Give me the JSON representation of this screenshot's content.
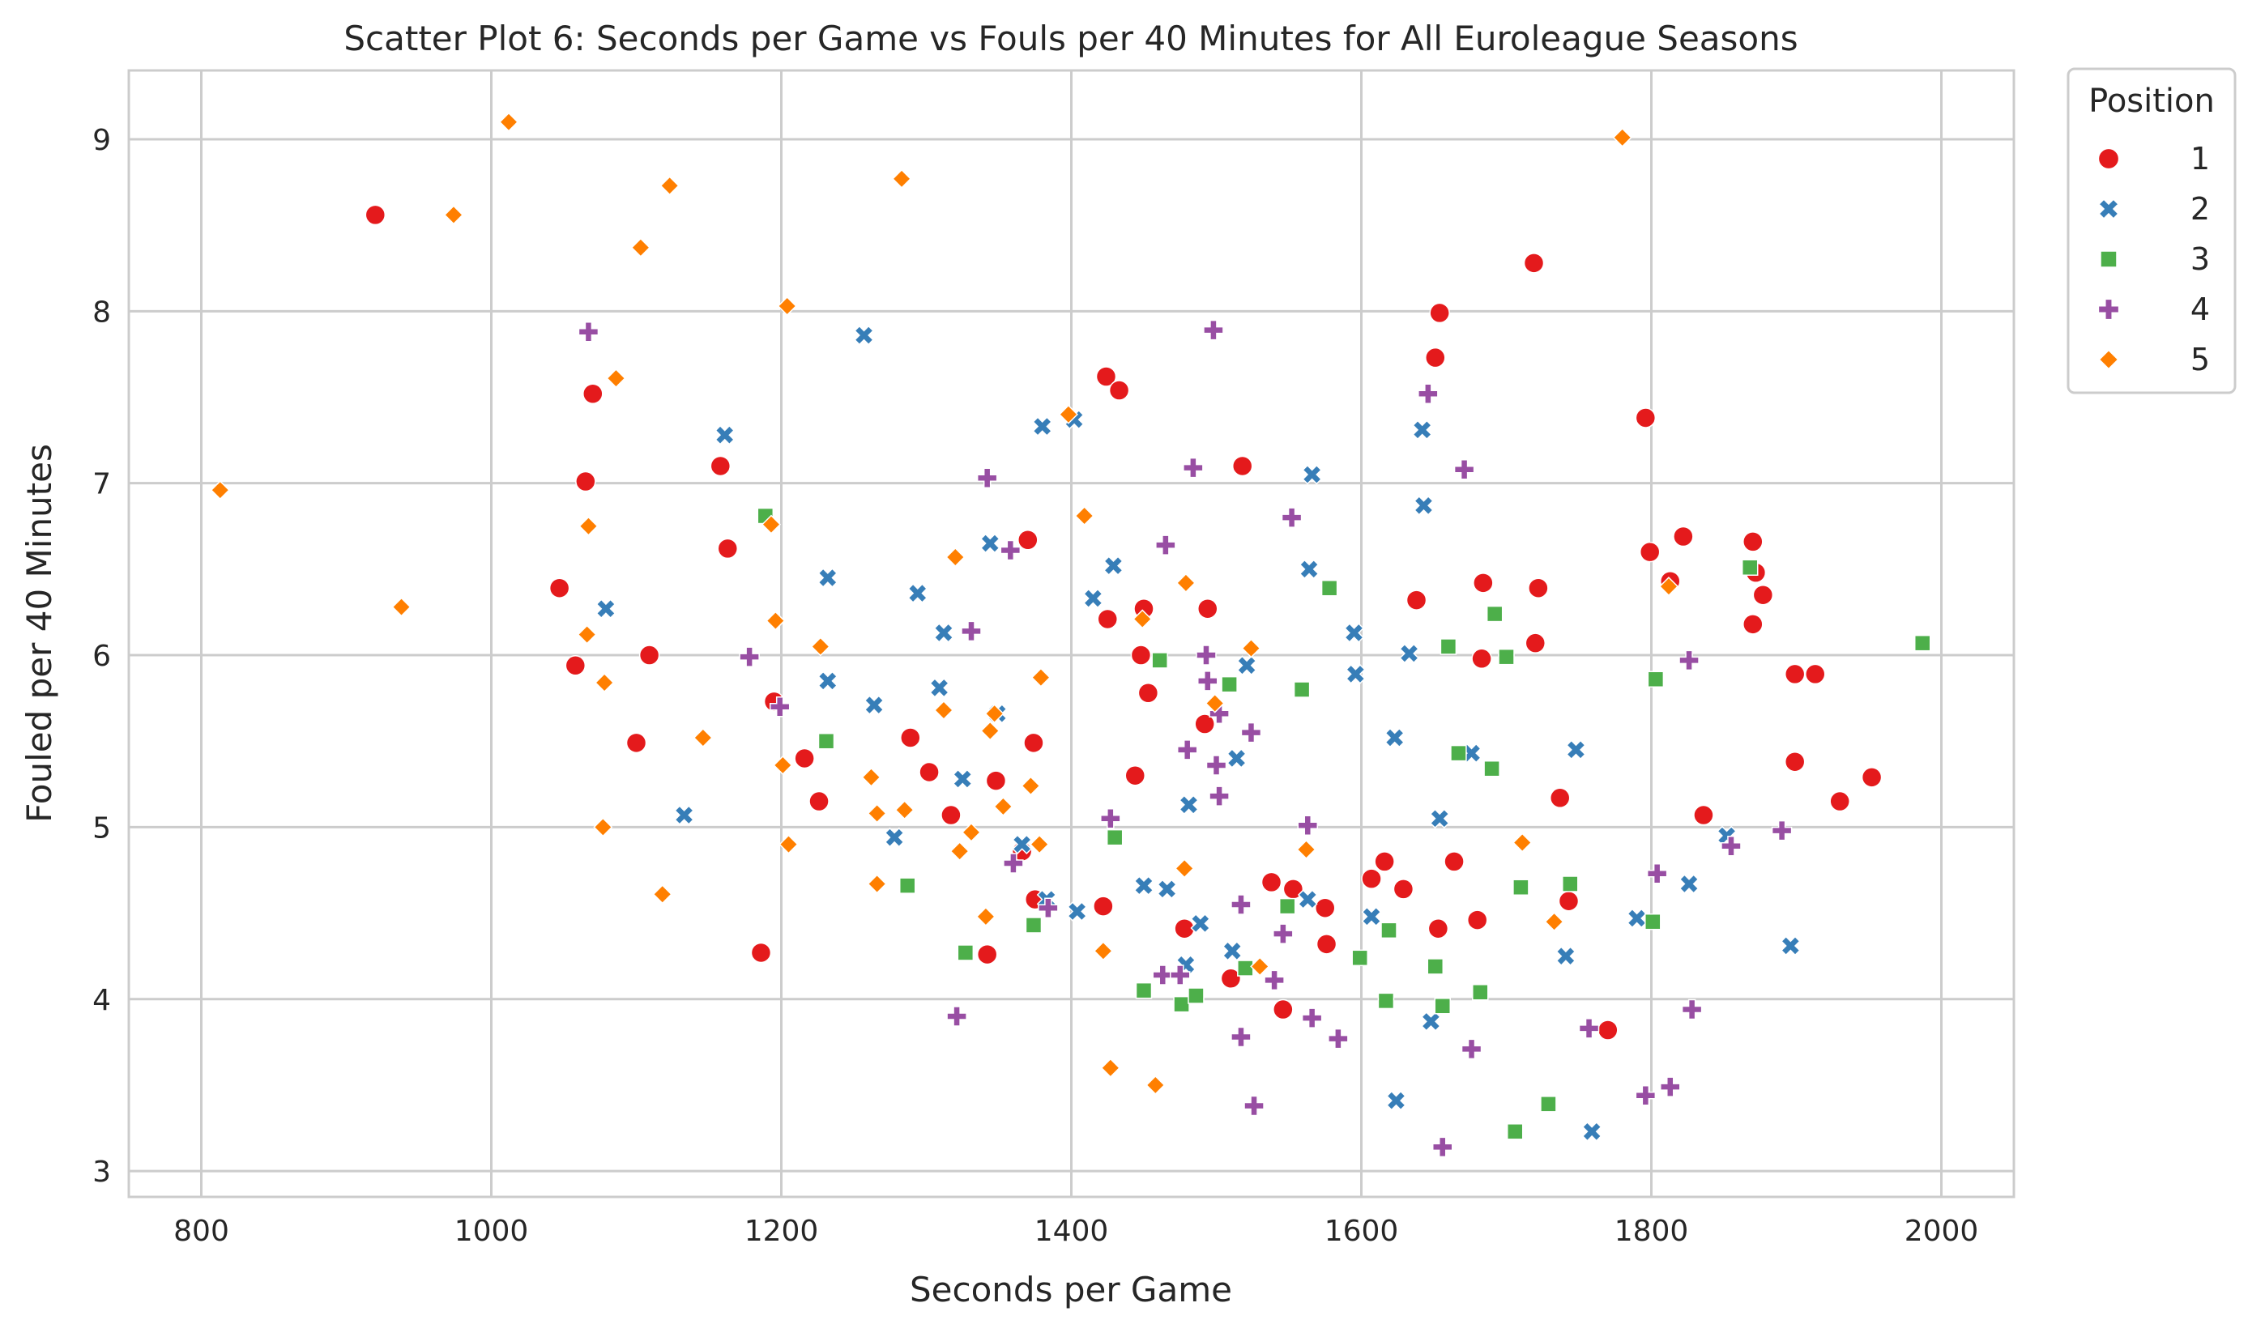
{
  "chart_data": {
    "type": "scatter",
    "title": "Scatter Plot 6: Seconds per Game vs Fouls per 40 Minutes for All Euroleague Seasons",
    "xlabel": "Seconds per Game",
    "ylabel": "Fouled per 40 Minutes",
    "xlim": [
      750,
      2050
    ],
    "ylim": [
      2.85,
      9.4
    ],
    "xticks": [
      800,
      1000,
      1200,
      1400,
      1600,
      1800,
      2000
    ],
    "yticks": [
      3,
      4,
      5,
      6,
      7,
      8,
      9
    ],
    "grid": true,
    "legend": {
      "title": "Position",
      "placement": "outside right, top"
    },
    "series": [
      {
        "name": "1",
        "marker": "circle",
        "color": "#e41a1c",
        "points": [
          [
            920,
            8.56
          ],
          [
            1047,
            6.39
          ],
          [
            1058,
            5.94
          ],
          [
            1065,
            7.01
          ],
          [
            1070,
            7.52
          ],
          [
            1100,
            5.49
          ],
          [
            1109,
            6.0
          ],
          [
            1158,
            7.1
          ],
          [
            1163,
            6.62
          ],
          [
            1186,
            4.27
          ],
          [
            1195,
            5.73
          ],
          [
            1216,
            5.4
          ],
          [
            1226,
            5.15
          ],
          [
            1289,
            5.52
          ],
          [
            1302,
            5.32
          ],
          [
            1317,
            5.07
          ],
          [
            1342,
            4.26
          ],
          [
            1348,
            5.27
          ],
          [
            1366,
            4.86
          ],
          [
            1370,
            6.67
          ],
          [
            1374,
            5.49
          ],
          [
            1375,
            4.58
          ],
          [
            1422,
            4.54
          ],
          [
            1424,
            7.62
          ],
          [
            1425,
            6.21
          ],
          [
            1433,
            7.54
          ],
          [
            1444,
            5.3
          ],
          [
            1448,
            6.0
          ],
          [
            1450,
            6.27
          ],
          [
            1453,
            5.78
          ],
          [
            1478,
            4.41
          ],
          [
            1492,
            5.6
          ],
          [
            1494,
            6.27
          ],
          [
            1510,
            4.12
          ],
          [
            1518,
            7.1
          ],
          [
            1538,
            4.68
          ],
          [
            1546,
            3.94
          ],
          [
            1553,
            4.64
          ],
          [
            1575,
            4.53
          ],
          [
            1576,
            4.32
          ],
          [
            1607,
            4.7
          ],
          [
            1616,
            4.8
          ],
          [
            1629,
            4.64
          ],
          [
            1638,
            6.32
          ],
          [
            1651,
            7.73
          ],
          [
            1653,
            4.41
          ],
          [
            1654,
            7.99
          ],
          [
            1664,
            4.8
          ],
          [
            1680,
            4.46
          ],
          [
            1683,
            5.98
          ],
          [
            1684,
            6.42
          ],
          [
            1719,
            8.28
          ],
          [
            1720,
            6.07
          ],
          [
            1722,
            6.39
          ],
          [
            1737,
            5.17
          ],
          [
            1743,
            4.57
          ],
          [
            1770,
            3.82
          ],
          [
            1796,
            7.38
          ],
          [
            1799,
            6.6
          ],
          [
            1813,
            6.43
          ],
          [
            1822,
            6.69
          ],
          [
            1836,
            5.07
          ],
          [
            1870,
            6.66
          ],
          [
            1870,
            6.18
          ],
          [
            1872,
            6.48
          ],
          [
            1877,
            6.35
          ],
          [
            1899,
            5.89
          ],
          [
            1913,
            5.89
          ],
          [
            1899,
            5.38
          ],
          [
            1930,
            5.15
          ],
          [
            1952,
            5.29
          ]
        ]
      },
      {
        "name": "2",
        "marker": "x",
        "color": "#377eb8",
        "points": [
          [
            1079,
            6.27
          ],
          [
            1133,
            5.07
          ],
          [
            1161,
            7.28
          ],
          [
            1257,
            7.86
          ],
          [
            1232,
            6.45
          ],
          [
            1232,
            5.85
          ],
          [
            1264,
            5.71
          ],
          [
            1278,
            4.94
          ],
          [
            1294,
            6.36
          ],
          [
            1309,
            5.81
          ],
          [
            1312,
            6.13
          ],
          [
            1325,
            5.28
          ],
          [
            1344,
            6.65
          ],
          [
            1349,
            5.66
          ],
          [
            1366,
            4.9
          ],
          [
            1380,
            7.33
          ],
          [
            1383,
            4.58
          ],
          [
            1402,
            7.37
          ],
          [
            1404,
            4.51
          ],
          [
            1415,
            6.33
          ],
          [
            1429,
            6.52
          ],
          [
            1450,
            4.66
          ],
          [
            1466,
            4.64
          ],
          [
            1479,
            4.2
          ],
          [
            1481,
            5.13
          ],
          [
            1489,
            4.44
          ],
          [
            1511,
            4.28
          ],
          [
            1514,
            5.4
          ],
          [
            1521,
            5.94
          ],
          [
            1563,
            4.58
          ],
          [
            1564,
            6.5
          ],
          [
            1566,
            7.05
          ],
          [
            1595,
            6.13
          ],
          [
            1596,
            5.89
          ],
          [
            1607,
            4.48
          ],
          [
            1623,
            5.52
          ],
          [
            1624,
            3.41
          ],
          [
            1633,
            6.01
          ],
          [
            1642,
            7.31
          ],
          [
            1643,
            6.87
          ],
          [
            1648,
            3.87
          ],
          [
            1654,
            5.05
          ],
          [
            1676,
            5.43
          ],
          [
            1741,
            4.25
          ],
          [
            1748,
            5.45
          ],
          [
            1759,
            3.23
          ],
          [
            1790,
            4.47
          ],
          [
            1826,
            4.67
          ],
          [
            1852,
            4.95
          ],
          [
            1896,
            4.31
          ]
        ]
      },
      {
        "name": "3",
        "marker": "square",
        "color": "#4daf4a",
        "points": [
          [
            1189,
            6.81
          ],
          [
            1231,
            5.5
          ],
          [
            1287,
            4.66
          ],
          [
            1327,
            4.27
          ],
          [
            1374,
            4.43
          ],
          [
            1430,
            4.94
          ],
          [
            1450,
            4.05
          ],
          [
            1461,
            5.97
          ],
          [
            1476,
            3.97
          ],
          [
            1486,
            4.02
          ],
          [
            1509,
            5.83
          ],
          [
            1520,
            4.18
          ],
          [
            1549,
            4.54
          ],
          [
            1559,
            5.8
          ],
          [
            1578,
            6.39
          ],
          [
            1599,
            4.24
          ],
          [
            1617,
            3.99
          ],
          [
            1619,
            4.4
          ],
          [
            1651,
            4.19
          ],
          [
            1656,
            3.96
          ],
          [
            1660,
            6.05
          ],
          [
            1667,
            5.43
          ],
          [
            1682,
            4.04
          ],
          [
            1690,
            5.34
          ],
          [
            1692,
            6.24
          ],
          [
            1700,
            5.99
          ],
          [
            1706,
            3.23
          ],
          [
            1710,
            4.65
          ],
          [
            1729,
            3.39
          ],
          [
            1744,
            4.67
          ],
          [
            1801,
            4.45
          ],
          [
            1803,
            5.86
          ],
          [
            1868,
            6.51
          ],
          [
            1987,
            6.07
          ]
        ]
      },
      {
        "name": "4",
        "marker": "plus",
        "color": "#984ea3",
        "points": [
          [
            1067,
            7.88
          ],
          [
            1178,
            5.99
          ],
          [
            1199,
            5.7
          ],
          [
            1321,
            3.9
          ],
          [
            1331,
            6.14
          ],
          [
            1342,
            7.03
          ],
          [
            1358,
            6.61
          ],
          [
            1360,
            4.79
          ],
          [
            1384,
            4.53
          ],
          [
            1427,
            5.05
          ],
          [
            1463,
            4.14
          ],
          [
            1465,
            6.64
          ],
          [
            1475,
            4.14
          ],
          [
            1480,
            5.45
          ],
          [
            1484,
            7.09
          ],
          [
            1493,
            6.0
          ],
          [
            1494,
            5.85
          ],
          [
            1498,
            7.89
          ],
          [
            1502,
            5.66
          ],
          [
            1502,
            5.18
          ],
          [
            1500,
            5.36
          ],
          [
            1517,
            3.78
          ],
          [
            1517,
            4.55
          ],
          [
            1524,
            5.55
          ],
          [
            1526,
            3.38
          ],
          [
            1540,
            4.11
          ],
          [
            1546,
            4.38
          ],
          [
            1552,
            6.8
          ],
          [
            1563,
            5.01
          ],
          [
            1566,
            3.89
          ],
          [
            1584,
            3.77
          ],
          [
            1646,
            7.52
          ],
          [
            1656,
            3.14
          ],
          [
            1671,
            7.08
          ],
          [
            1676,
            3.71
          ],
          [
            1757,
            3.83
          ],
          [
            1796,
            3.44
          ],
          [
            1804,
            4.73
          ],
          [
            1813,
            3.49
          ],
          [
            1826,
            5.97
          ],
          [
            1828,
            3.94
          ],
          [
            1855,
            4.89
          ],
          [
            1890,
            4.98
          ]
        ]
      },
      {
        "name": "5",
        "marker": "diamond",
        "color": "#ff7f00",
        "points": [
          [
            813,
            6.96
          ],
          [
            938,
            6.28
          ],
          [
            974,
            8.56
          ],
          [
            1012,
            9.1
          ],
          [
            1066,
            6.12
          ],
          [
            1067,
            6.75
          ],
          [
            1077,
            5.0
          ],
          [
            1078,
            5.84
          ],
          [
            1086,
            7.61
          ],
          [
            1103,
            8.37
          ],
          [
            1118,
            4.61
          ],
          [
            1123,
            8.73
          ],
          [
            1146,
            5.52
          ],
          [
            1193,
            6.76
          ],
          [
            1196,
            6.2
          ],
          [
            1201,
            5.36
          ],
          [
            1204,
            8.03
          ],
          [
            1205,
            4.9
          ],
          [
            1227,
            6.05
          ],
          [
            1262,
            5.29
          ],
          [
            1266,
            5.08
          ],
          [
            1266,
            4.67
          ],
          [
            1283,
            8.77
          ],
          [
            1285,
            5.1
          ],
          [
            1312,
            5.68
          ],
          [
            1320,
            6.57
          ],
          [
            1323,
            4.86
          ],
          [
            1331,
            4.97
          ],
          [
            1341,
            4.48
          ],
          [
            1344,
            5.56
          ],
          [
            1347,
            5.66
          ],
          [
            1353,
            5.12
          ],
          [
            1372,
            5.24
          ],
          [
            1378,
            4.9
          ],
          [
            1379,
            5.87
          ],
          [
            1398,
            7.4
          ],
          [
            1409,
            6.81
          ],
          [
            1422,
            4.28
          ],
          [
            1427,
            3.6
          ],
          [
            1449,
            6.21
          ],
          [
            1458,
            3.5
          ],
          [
            1479,
            6.42
          ],
          [
            1478,
            4.76
          ],
          [
            1499,
            5.72
          ],
          [
            1524,
            6.04
          ],
          [
            1530,
            4.19
          ],
          [
            1562,
            4.87
          ],
          [
            1711,
            4.91
          ],
          [
            1733,
            4.45
          ],
          [
            1780,
            9.01
          ],
          [
            1812,
            6.4
          ]
        ]
      }
    ]
  }
}
